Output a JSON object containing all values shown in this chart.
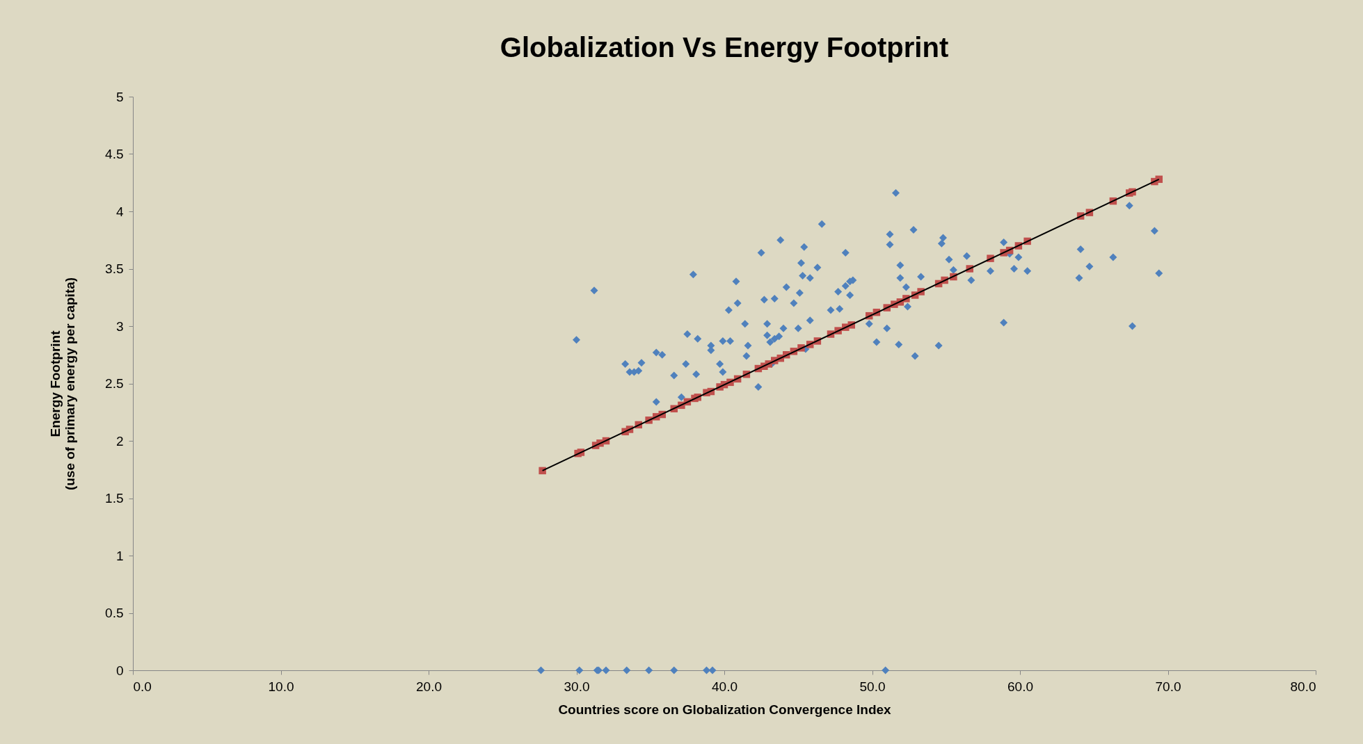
{
  "chart_data": {
    "type": "scatter",
    "title": "Globalization Vs Energy Footprint",
    "xlabel": "Countries score on Globalization  Convergence Index",
    "ylabel": "Energy Footprint\n(use of primary energy per capita)",
    "xlim": [
      0,
      80
    ],
    "xticks": [
      {
        "value": 0,
        "label": "0.0"
      },
      {
        "value": 10,
        "label": "10.0"
      },
      {
        "value": 20,
        "label": "20.0"
      },
      {
        "value": 30,
        "label": "30.0"
      },
      {
        "value": 40,
        "label": "40.0"
      },
      {
        "value": 50,
        "label": "50.0"
      },
      {
        "value": 60,
        "label": "60.0"
      },
      {
        "value": 70,
        "label": "70.0"
      },
      {
        "value": 80,
        "label": "80.0"
      }
    ],
    "ylim": [
      0,
      5
    ],
    "yticks": [
      0,
      0.5,
      1,
      1.5,
      2,
      2.5,
      3,
      3.5,
      4,
      4.5,
      5
    ],
    "grid": false,
    "series": [
      {
        "marker": "diamond",
        "color": "#4f81bd",
        "x": [
          27.6,
          30.2,
          31.4,
          31.5,
          32.0,
          33.4,
          34.9,
          36.6,
          38.8,
          39.2,
          50.9,
          30.0,
          31.2,
          33.3,
          33.6,
          33.9,
          34.2,
          34.4,
          35.4,
          35.8,
          35.4,
          36.6,
          37.1,
          37.4,
          37.5,
          37.9,
          38.1,
          38.2,
          39.1,
          39.1,
          39.7,
          39.9,
          39.9,
          40.4,
          40.3,
          40.8,
          40.9,
          41.5,
          41.6,
          41.4,
          42.3,
          42.5,
          42.7,
          42.9,
          42.9,
          43.1,
          43.4,
          43.4,
          43.2,
          43.7,
          43.8,
          44.0,
          44.2,
          44.7,
          45.0,
          45.1,
          45.2,
          45.4,
          45.3,
          45.5,
          45.8,
          45.8,
          46.3,
          46.6,
          47.2,
          47.7,
          47.8,
          48.2,
          48.2,
          48.5,
          48.5,
          48.7,
          49.8,
          50.3,
          51.0,
          51.2,
          51.2,
          51.6,
          51.8,
          51.9,
          51.9,
          52.3,
          52.4,
          52.8,
          52.9,
          53.3,
          54.5,
          54.8,
          54.7,
          55.2,
          55.5,
          56.4,
          56.7,
          58.0,
          58.9,
          58.9,
          59.3,
          59.6,
          59.9,
          60.5,
          64.1,
          64.0,
          64.7,
          66.3,
          67.4,
          67.6,
          69.1,
          69.4
        ],
        "values": [
          0,
          0,
          0,
          0,
          0,
          0,
          0,
          0,
          0,
          0,
          0,
          2.88,
          3.31,
          2.67,
          2.6,
          2.6,
          2.61,
          2.68,
          2.77,
          2.75,
          2.34,
          2.57,
          2.38,
          2.67,
          2.93,
          3.45,
          2.58,
          2.89,
          2.83,
          2.79,
          2.67,
          2.6,
          2.87,
          2.87,
          3.14,
          3.39,
          3.2,
          2.74,
          2.83,
          3.02,
          2.47,
          3.64,
          3.23,
          3.02,
          2.92,
          2.86,
          2.89,
          3.24,
          2.67,
          2.91,
          3.75,
          2.98,
          3.34,
          3.2,
          2.98,
          3.29,
          3.55,
          3.69,
          3.44,
          2.8,
          3.42,
          3.05,
          3.51,
          3.89,
          3.14,
          3.3,
          3.15,
          3.64,
          3.35,
          3.27,
          3.39,
          3.4,
          3.02,
          2.86,
          2.98,
          3.8,
          3.71,
          4.16,
          2.84,
          3.53,
          3.42,
          3.34,
          3.17,
          3.84,
          2.74,
          3.43,
          2.83,
          3.77,
          3.72,
          3.58,
          3.49,
          3.61,
          3.4,
          3.48,
          3.03,
          3.73,
          3.63,
          3.5,
          3.6,
          3.48,
          3.67,
          3.42,
          3.52,
          3.6,
          4.05,
          3.0,
          3.83,
          3.46
        ]
      },
      {
        "marker": "square",
        "color": "#c0504d",
        "x": [
          27.7,
          30.1,
          30.3,
          31.3,
          31.6,
          32.0,
          33.3,
          33.6,
          34.2,
          34.9,
          35.4,
          35.8,
          36.6,
          37.1,
          37.5,
          38.0,
          38.2,
          38.8,
          39.1,
          39.7,
          40.0,
          40.4,
          40.9,
          41.5,
          42.3,
          42.7,
          43.0,
          43.4,
          43.8,
          44.2,
          44.7,
          45.2,
          45.8,
          46.3,
          47.2,
          47.7,
          48.2,
          48.6,
          49.8,
          50.3,
          51.0,
          51.5,
          51.9,
          52.3,
          52.9,
          53.3,
          54.5,
          54.9,
          55.5,
          56.6,
          58.0,
          58.9,
          59.3,
          59.9,
          60.5,
          64.1,
          64.7,
          66.3,
          67.4,
          67.6,
          69.1,
          69.4
        ],
        "values": [
          1.74,
          1.89,
          1.9,
          1.96,
          1.98,
          2.0,
          2.08,
          2.1,
          2.14,
          2.18,
          2.21,
          2.23,
          2.28,
          2.31,
          2.34,
          2.37,
          2.38,
          2.42,
          2.43,
          2.47,
          2.49,
          2.51,
          2.54,
          2.58,
          2.63,
          2.65,
          2.67,
          2.7,
          2.72,
          2.75,
          2.78,
          2.81,
          2.84,
          2.87,
          2.93,
          2.96,
          2.99,
          3.01,
          3.09,
          3.12,
          3.16,
          3.19,
          3.21,
          3.24,
          3.27,
          3.3,
          3.37,
          3.4,
          3.43,
          3.5,
          3.59,
          3.64,
          3.66,
          3.7,
          3.74,
          3.96,
          3.99,
          4.09,
          4.16,
          4.17,
          4.26,
          4.28
        ]
      },
      {
        "type": "line",
        "marker": "none",
        "color": "#000000",
        "x": [
          27.7,
          69.4
        ],
        "values": [
          1.74,
          4.28
        ]
      }
    ]
  }
}
